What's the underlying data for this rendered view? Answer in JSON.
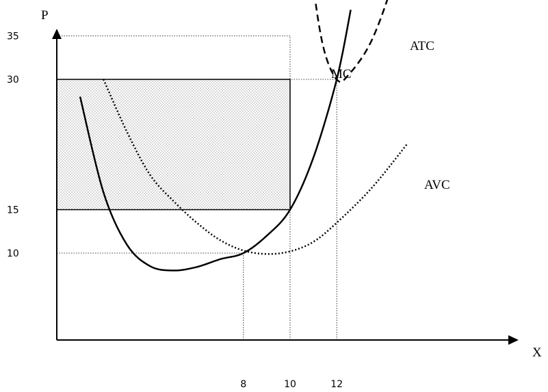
{
  "chart_data": {
    "type": "line",
    "title": "",
    "xlabel": "X",
    "ylabel": "P",
    "x_ticks": [
      8,
      10,
      12
    ],
    "y_ticks": [
      10,
      15,
      30,
      35
    ],
    "curves": [
      {
        "name": "MC",
        "style": "solid",
        "points": [
          [
            1,
            28
          ],
          [
            2,
            17
          ],
          [
            3,
            11
          ],
          [
            4,
            8.5
          ],
          [
            5,
            8
          ],
          [
            6,
            8.4
          ],
          [
            7,
            9.3
          ],
          [
            8,
            10
          ],
          [
            9,
            12
          ],
          [
            10,
            15
          ],
          [
            11,
            21
          ],
          [
            12,
            30
          ],
          [
            12.6,
            38
          ]
        ]
      },
      {
        "name": "ATC",
        "style": "dashed",
        "points": [
          [
            10.5,
            55
          ],
          [
            10.9,
            43
          ],
          [
            11.4,
            34
          ],
          [
            12,
            30
          ],
          [
            12.5,
            30.5
          ],
          [
            13.5,
            34.5
          ],
          [
            14.5,
            42
          ],
          [
            15.2,
            50
          ]
        ]
      },
      {
        "name": "AVC",
        "style": "dotted",
        "points": [
          [
            2,
            30
          ],
          [
            3,
            24
          ],
          [
            4,
            19
          ],
          [
            5,
            16
          ],
          [
            6,
            13.5
          ],
          [
            7,
            11.5
          ],
          [
            8,
            10.3
          ],
          [
            9,
            9.9
          ],
          [
            10,
            10.2
          ],
          [
            11,
            11.3
          ],
          [
            12,
            13.5
          ],
          [
            13.5,
            17.5
          ],
          [
            15,
            22.5
          ]
        ]
      }
    ],
    "shaded_rectangle": {
      "x": [
        0,
        10
      ],
      "y": [
        15,
        30
      ],
      "pattern": "dots"
    },
    "reference_lines": {
      "horizontal": [
        [
          10,
          8
        ],
        [
          15,
          10
        ],
        [
          30,
          12
        ],
        [
          35,
          10
        ]
      ],
      "vertical": [
        [
          8,
          10
        ],
        [
          10,
          35
        ],
        [
          12,
          30
        ]
      ]
    },
    "xlim": [
      0,
      17.5
    ],
    "ylim": [
      0,
      60
    ]
  }
}
